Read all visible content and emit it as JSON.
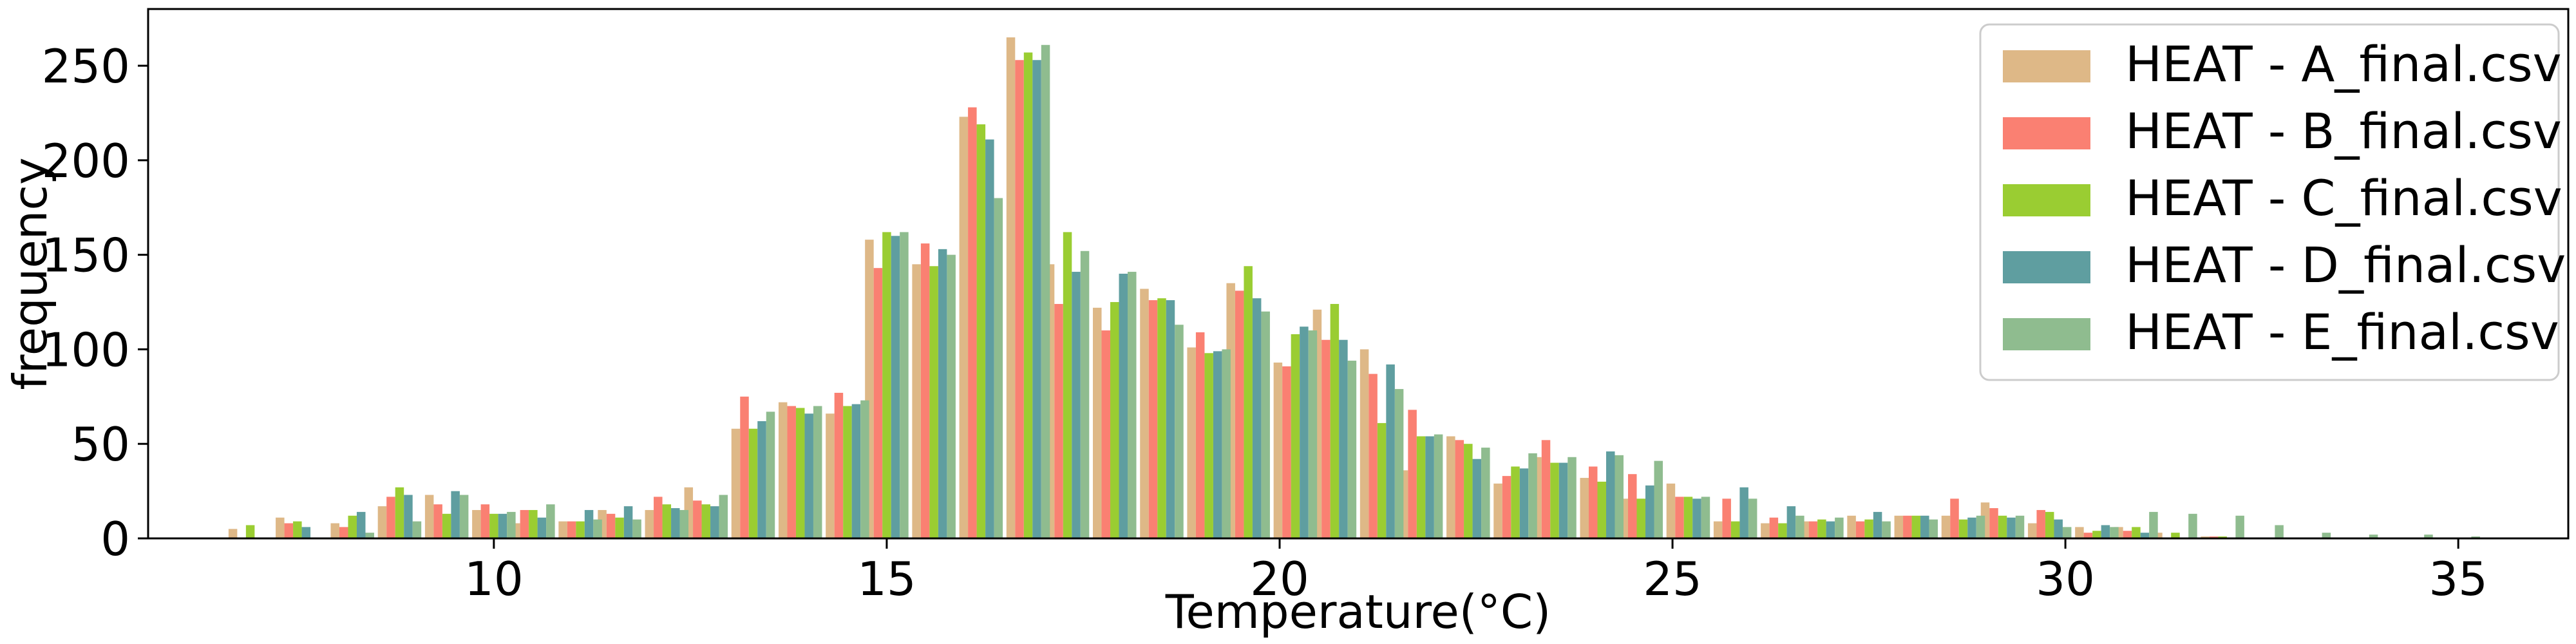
{
  "chart_data": {
    "type": "bar",
    "xlabel": "Temperature(°C)",
    "ylabel": "frequency",
    "xlim": [
      5.6,
      36.4
    ],
    "ylim": [
      0,
      280
    ],
    "xticks": [
      10,
      15,
      20,
      25,
      30,
      35
    ],
    "yticks": [
      0,
      50,
      100,
      150,
      200,
      250
    ],
    "grid": false,
    "legend_position": "top-right",
    "x": [
      6.9,
      7.5,
      8.2,
      8.8,
      9.4,
      10.0,
      10.5,
      11.1,
      11.6,
      12.2,
      12.7,
      13.3,
      13.9,
      14.5,
      15.0,
      15.6,
      16.2,
      16.8,
      17.3,
      17.9,
      18.5,
      19.1,
      19.6,
      20.2,
      20.7,
      21.3,
      21.8,
      22.4,
      23.0,
      23.5,
      24.1,
      24.6,
      25.2,
      25.8,
      26.4,
      26.9,
      27.5,
      28.1,
      28.7,
      29.2,
      29.8,
      30.4,
      30.9,
      31.4,
      32.0,
      32.5,
      33.1,
      33.7,
      34.4,
      35.0
    ],
    "series": [
      {
        "name": "HEAT - A_final.csv",
        "color": "#DEB887",
        "values": [
          5,
          11,
          8,
          17,
          23,
          15,
          8,
          9,
          15,
          15,
          27,
          58,
          72,
          66,
          158,
          145,
          223,
          265,
          145,
          122,
          132,
          101,
          135,
          93,
          121,
          100,
          36,
          54,
          29,
          43,
          32,
          21,
          29,
          9,
          8,
          9,
          12,
          12,
          12,
          19,
          8,
          6,
          6,
          3,
          1,
          0,
          0,
          0,
          0,
          0
        ]
      },
      {
        "name": "HEAT - B_final.csv",
        "color": "#FA8072",
        "values": [
          0,
          8,
          6,
          22,
          18,
          18,
          15,
          9,
          13,
          22,
          20,
          75,
          70,
          77,
          143,
          156,
          228,
          253,
          124,
          110,
          126,
          109,
          131,
          91,
          105,
          87,
          68,
          52,
          33,
          52,
          38,
          34,
          22,
          21,
          11,
          9,
          9,
          12,
          21,
          16,
          15,
          3,
          4,
          0,
          1,
          0,
          0,
          0,
          0,
          0
        ]
      },
      {
        "name": "HEAT - C_final.csv",
        "color": "#9ACD32",
        "values": [
          7,
          9,
          12,
          27,
          13,
          13,
          15,
          9,
          11,
          18,
          18,
          58,
          69,
          70,
          162,
          144,
          219,
          257,
          162,
          125,
          127,
          98,
          144,
          108,
          124,
          61,
          54,
          50,
          38,
          40,
          30,
          21,
          22,
          9,
          8,
          10,
          10,
          12,
          10,
          12,
          14,
          4,
          6,
          3,
          1,
          0,
          0,
          0,
          0,
          0
        ]
      },
      {
        "name": "HEAT - D_final.csv",
        "color": "#5F9EA0",
        "values": [
          0,
          6,
          14,
          23,
          25,
          13,
          11,
          15,
          17,
          16,
          17,
          62,
          66,
          71,
          160,
          153,
          211,
          253,
          141,
          140,
          126,
          99,
          127,
          112,
          105,
          92,
          54,
          42,
          37,
          40,
          46,
          28,
          21,
          27,
          17,
          9,
          14,
          12,
          11,
          11,
          10,
          7,
          3,
          0,
          0,
          0,
          0,
          0,
          0,
          0
        ]
      },
      {
        "name": "HEAT - E_final.csv",
        "color": "#8FBC8F",
        "values": [
          0,
          0,
          3,
          9,
          23,
          14,
          18,
          10,
          10,
          15,
          23,
          67,
          70,
          73,
          162,
          150,
          180,
          261,
          152,
          141,
          113,
          100,
          120,
          110,
          94,
          79,
          55,
          48,
          45,
          43,
          44,
          41,
          22,
          21,
          12,
          11,
          9,
          10,
          12,
          12,
          6,
          6,
          14,
          13,
          12,
          7,
          3,
          2,
          2,
          1
        ]
      }
    ]
  }
}
